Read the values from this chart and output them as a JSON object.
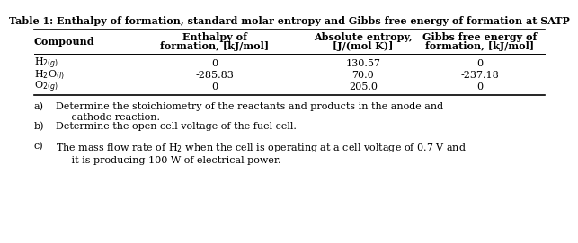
{
  "title": "Table 1: Enthalpy of formation, standard molar entropy and Gibbs free energy of formation at SATP",
  "col_header_line1": [
    "Compound",
    "Enthalpy of",
    "Absolute entropy,",
    "Gibbs free energy of"
  ],
  "col_header_line2": [
    "",
    "formation, [kJ/mol]",
    "[J/(mol K)]",
    "formation, [kJ/mol]"
  ],
  "rows": [
    [
      "H$_{2(g)}$",
      "0",
      "130.57",
      "0"
    ],
    [
      "H$_2$O$_{(l)}$",
      "-285.83",
      "70.0",
      "-237.18"
    ],
    [
      "O$_{2(g)}$",
      "0",
      "205.0",
      "0"
    ]
  ],
  "questions": [
    [
      "a)",
      "Determine the stoichiometry of the reactants and products in the anode and\n     cathode reaction."
    ],
    [
      "b)",
      "Determine the open cell voltage of the fuel cell."
    ],
    [
      "c)",
      "The mass flow rate of H$_2$ when the cell is operating at a cell voltage of 0.7 V and\n     it is producing 100 W of electrical power."
    ]
  ],
  "bg_color": "#ffffff",
  "text_color": "#000000",
  "font_size": 8.0,
  "title_font_size": 8.0
}
